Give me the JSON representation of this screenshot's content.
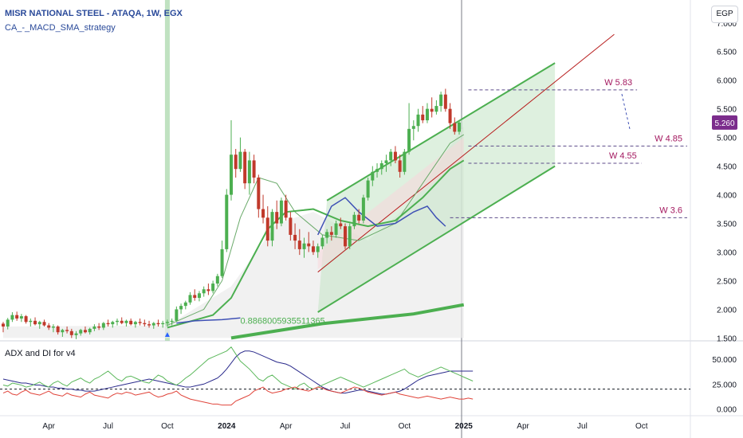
{
  "header": {
    "symbol_line": "MISR NATIONAL STEEL - ATAQA, 1W, EGX",
    "strategy_line": "CA_-_MACD_SMA_strategy",
    "indicator_line": "ADX and DI for v4",
    "currency_button": "EGP"
  },
  "chart_data": [
    {
      "type": "candlestick",
      "title": "MISR NATIONAL STEEL - ATAQA, 1W, EGX",
      "y_ticks": [
        "7.000",
        "6.500",
        "6.000",
        "5.500",
        "5.000",
        "4.500",
        "4.000",
        "3.500",
        "3.000",
        "2.500",
        "2.000",
        "1.500"
      ],
      "y_tick_values": [
        7.0,
        6.5,
        6.0,
        5.5,
        5.0,
        4.5,
        4.0,
        3.5,
        3.0,
        2.5,
        2.0,
        1.5
      ],
      "ylim": [
        1.45,
        7.4
      ],
      "current_price": "5.260",
      "current_price_value": 5.26,
      "x_ticks": [
        "Apr",
        "Jul",
        "Oct",
        "2024",
        "Apr",
        "Jul",
        "Oct",
        "2025",
        "Apr",
        "Jul",
        "Oct"
      ],
      "x_tick_bars": [
        10,
        23,
        36,
        49,
        62,
        75,
        88,
        101,
        114,
        127,
        140
      ],
      "candles": [
        [
          1.75,
          1.78,
          1.6,
          1.7
        ],
        [
          1.7,
          1.85,
          1.65,
          1.82
        ],
        [
          1.82,
          1.95,
          1.78,
          1.9
        ],
        [
          1.9,
          1.96,
          1.8,
          1.84
        ],
        [
          1.84,
          1.92,
          1.78,
          1.88
        ],
        [
          1.88,
          1.9,
          1.75,
          1.78
        ],
        [
          1.78,
          1.84,
          1.7,
          1.8
        ],
        [
          1.8,
          1.86,
          1.72,
          1.74
        ],
        [
          1.74,
          1.8,
          1.66,
          1.78
        ],
        [
          1.78,
          1.82,
          1.7,
          1.72
        ],
        [
          1.72,
          1.76,
          1.64,
          1.68
        ],
        [
          1.68,
          1.74,
          1.6,
          1.7
        ],
        [
          1.7,
          1.72,
          1.56,
          1.6
        ],
        [
          1.6,
          1.66,
          1.52,
          1.64
        ],
        [
          1.64,
          1.7,
          1.58,
          1.62
        ],
        [
          1.62,
          1.66,
          1.5,
          1.55
        ],
        [
          1.55,
          1.62,
          1.48,
          1.58
        ],
        [
          1.58,
          1.66,
          1.54,
          1.64
        ],
        [
          1.64,
          1.7,
          1.58,
          1.6
        ],
        [
          1.6,
          1.68,
          1.56,
          1.66
        ],
        [
          1.66,
          1.74,
          1.62,
          1.7
        ],
        [
          1.7,
          1.76,
          1.64,
          1.68
        ],
        [
          1.68,
          1.78,
          1.64,
          1.76
        ],
        [
          1.76,
          1.82,
          1.7,
          1.74
        ],
        [
          1.74,
          1.8,
          1.68,
          1.78
        ],
        [
          1.78,
          1.84,
          1.72,
          1.8
        ],
        [
          1.8,
          1.86,
          1.74,
          1.76
        ],
        [
          1.76,
          1.82,
          1.7,
          1.8
        ],
        [
          1.8,
          1.84,
          1.72,
          1.74
        ],
        [
          1.74,
          1.8,
          1.68,
          1.78
        ],
        [
          1.78,
          1.84,
          1.72,
          1.76
        ],
        [
          1.76,
          1.82,
          1.7,
          1.74
        ],
        [
          1.74,
          1.8,
          1.68,
          1.72
        ],
        [
          1.72,
          1.78,
          1.66,
          1.76
        ],
        [
          1.76,
          1.82,
          1.7,
          1.74
        ],
        [
          1.74,
          1.8,
          1.68,
          1.76
        ],
        [
          1.76,
          1.82,
          1.7,
          1.78
        ],
        [
          1.78,
          1.84,
          1.72,
          1.8
        ],
        [
          1.8,
          2.05,
          1.78,
          2.0
        ],
        [
          2.0,
          2.1,
          1.92,
          2.06
        ],
        [
          2.06,
          2.15,
          2.0,
          2.12
        ],
        [
          2.12,
          2.3,
          2.08,
          2.25
        ],
        [
          2.25,
          2.35,
          2.15,
          2.2
        ],
        [
          2.2,
          2.32,
          2.14,
          2.28
        ],
        [
          2.28,
          2.4,
          2.22,
          2.35
        ],
        [
          2.35,
          2.45,
          2.25,
          2.32
        ],
        [
          2.32,
          2.5,
          2.28,
          2.45
        ],
        [
          2.45,
          2.62,
          2.4,
          2.58
        ],
        [
          2.58,
          3.2,
          2.55,
          3.05
        ],
        [
          3.05,
          4.1,
          3.0,
          4.0
        ],
        [
          4.0,
          5.3,
          3.9,
          4.7
        ],
        [
          4.7,
          4.8,
          4.3,
          4.45
        ],
        [
          4.45,
          5.0,
          4.4,
          4.75
        ],
        [
          4.75,
          4.8,
          4.1,
          4.2
        ],
        [
          4.2,
          4.75,
          4.0,
          4.6
        ],
        [
          4.6,
          4.7,
          4.2,
          4.3
        ],
        [
          4.3,
          4.35,
          3.6,
          3.75
        ],
        [
          3.75,
          4.0,
          3.5,
          3.6
        ],
        [
          3.6,
          3.8,
          3.1,
          3.2
        ],
        [
          3.2,
          3.75,
          3.1,
          3.7
        ],
        [
          3.7,
          3.9,
          3.4,
          3.5
        ],
        [
          3.5,
          3.95,
          3.45,
          3.9
        ],
        [
          3.9,
          4.0,
          3.55,
          3.6
        ],
        [
          3.6,
          3.7,
          3.2,
          3.3
        ],
        [
          3.3,
          3.5,
          3.05,
          3.2
        ],
        [
          3.2,
          3.4,
          2.95,
          3.05
        ],
        [
          3.05,
          3.25,
          2.9,
          3.15
        ],
        [
          3.15,
          3.35,
          3.0,
          3.1
        ],
        [
          3.1,
          3.2,
          2.95,
          3.0
        ],
        [
          3.0,
          3.15,
          2.9,
          3.1
        ],
        [
          3.1,
          3.3,
          3.05,
          3.25
        ],
        [
          3.25,
          3.4,
          3.15,
          3.35
        ],
        [
          3.35,
          3.45,
          3.2,
          3.3
        ],
        [
          3.3,
          3.55,
          3.25,
          3.5
        ],
        [
          3.5,
          3.6,
          3.4,
          3.45
        ],
        [
          3.45,
          3.5,
          3.05,
          3.1
        ],
        [
          3.1,
          3.5,
          3.05,
          3.45
        ],
        [
          3.45,
          3.7,
          3.4,
          3.65
        ],
        [
          3.65,
          3.75,
          3.5,
          3.55
        ],
        [
          3.55,
          4.0,
          3.5,
          3.95
        ],
        [
          3.95,
          4.3,
          3.9,
          4.25
        ],
        [
          4.25,
          4.5,
          4.15,
          4.4
        ],
        [
          4.4,
          4.55,
          4.3,
          4.45
        ],
        [
          4.45,
          4.6,
          4.35,
          4.55
        ],
        [
          4.55,
          4.7,
          4.4,
          4.6
        ],
        [
          4.6,
          4.8,
          4.5,
          4.75
        ],
        [
          4.75,
          4.85,
          4.55,
          4.6
        ],
        [
          4.6,
          4.7,
          4.3,
          4.4
        ],
        [
          4.4,
          4.8,
          4.35,
          4.75
        ],
        [
          4.75,
          5.6,
          4.7,
          5.15
        ],
        [
          5.15,
          5.3,
          4.95,
          5.2
        ],
        [
          5.2,
          5.5,
          5.1,
          5.4
        ],
        [
          5.4,
          5.55,
          5.25,
          5.3
        ],
        [
          5.3,
          5.6,
          5.25,
          5.5
        ],
        [
          5.5,
          5.7,
          5.35,
          5.45
        ],
        [
          5.45,
          5.65,
          5.4,
          5.55
        ],
        [
          5.55,
          5.8,
          5.45,
          5.75
        ],
        [
          5.75,
          5.85,
          5.45,
          5.5
        ],
        [
          5.5,
          5.6,
          5.15,
          5.25
        ],
        [
          5.25,
          5.35,
          5.05,
          5.1
        ],
        [
          5.1,
          5.3,
          5.05,
          5.26
        ]
      ],
      "blue_line": [
        [
          38,
          1.76
        ],
        [
          42,
          1.8
        ],
        [
          48,
          1.82
        ],
        [
          52,
          1.85
        ]
      ],
      "blue_line_2": [
        [
          69,
          3.3
        ],
        [
          72,
          3.8
        ],
        [
          75,
          3.95
        ],
        [
          78,
          3.7
        ],
        [
          82,
          3.45
        ],
        [
          86,
          3.5
        ],
        [
          90,
          3.7
        ],
        [
          93,
          3.8
        ],
        [
          95,
          3.6
        ],
        [
          97,
          3.45
        ]
      ],
      "green_fill_upper": [
        [
          71,
          3.9
        ],
        [
          121,
          6.3
        ]
      ],
      "green_fill_lower": [
        [
          69,
          1.95
        ],
        [
          121,
          4.5
        ]
      ],
      "red_trendline": [
        [
          69,
          2.65
        ],
        [
          134,
          6.8
        ]
      ],
      "annotations": [
        {
          "text": "W  5.83",
          "value": 5.83,
          "line_from": 102,
          "line_to": 139
        },
        {
          "text": "W 4.85",
          "value": 4.85,
          "line_from": 102,
          "line_to": 150
        },
        {
          "text": "W 4.55",
          "value": 4.55,
          "line_from": 102,
          "line_to": 140
        },
        {
          "text": "W 3.6",
          "value": 3.6,
          "line_from": 98,
          "line_to": 150
        }
      ],
      "fib_label": "0.8868005935511365"
    },
    {
      "type": "line",
      "title": "ADX and DI for v4",
      "y_ticks": [
        "50.000",
        "25.000",
        "0.000"
      ],
      "y_tick_values": [
        50,
        25,
        0
      ],
      "ylim": [
        -5,
        65
      ],
      "threshold": 20,
      "series": [
        {
          "color": "#2b2b8c",
          "values": [
            30,
            29,
            28,
            27,
            26,
            26,
            25,
            24,
            24,
            23,
            22,
            22,
            21,
            21,
            20,
            20,
            19,
            19,
            18,
            18,
            18,
            19,
            20,
            21,
            22,
            23,
            24,
            25,
            26,
            27,
            28,
            29,
            30,
            29,
            28,
            27,
            26,
            25,
            24,
            23,
            22,
            22,
            23,
            24,
            25,
            27,
            29,
            31,
            35,
            40,
            46,
            52,
            56,
            58,
            58,
            57,
            55,
            53,
            51,
            49,
            47,
            46,
            45,
            43,
            40,
            37,
            34,
            31,
            28,
            25,
            22,
            20,
            18,
            17,
            16,
            16,
            17,
            18,
            19,
            19,
            18,
            17,
            16,
            15,
            15,
            16,
            17,
            18,
            20,
            23,
            26,
            29,
            31,
            33,
            34,
            35,
            36,
            37,
            38,
            38,
            38,
            38,
            38,
            38
          ]
        },
        {
          "color": "#5cb85c",
          "values": [
            24,
            23,
            26,
            25,
            24,
            22,
            23,
            25,
            27,
            24,
            22,
            26,
            28,
            25,
            23,
            27,
            29,
            31,
            28,
            26,
            30,
            32,
            35,
            38,
            34,
            30,
            28,
            32,
            33,
            31,
            29,
            27,
            26,
            30,
            34,
            32,
            28,
            26,
            24,
            27,
            31,
            34,
            38,
            42,
            46,
            50,
            52,
            54,
            56,
            58,
            62,
            55,
            48,
            44,
            40,
            35,
            30,
            28,
            32,
            34,
            30,
            26,
            24,
            22,
            20,
            24,
            26,
            22,
            20,
            22,
            24,
            26,
            28,
            30,
            32,
            30,
            28,
            26,
            24,
            22,
            24,
            26,
            28,
            30,
            32,
            34,
            36,
            38,
            40,
            36,
            34,
            32,
            34,
            36,
            38,
            40,
            42,
            40,
            38,
            36,
            34,
            32,
            30,
            28
          ]
        },
        {
          "color": "#e0443a",
          "values": [
            16,
            18,
            15,
            14,
            17,
            19,
            16,
            15,
            14,
            16,
            18,
            15,
            14,
            13,
            16,
            14,
            13,
            12,
            15,
            17,
            14,
            13,
            12,
            11,
            14,
            16,
            15,
            17,
            16,
            14,
            15,
            16,
            17,
            14,
            12,
            13,
            15,
            16,
            18,
            14,
            12,
            10,
            9,
            8,
            7,
            6,
            5,
            5,
            4,
            4,
            4,
            8,
            10,
            12,
            14,
            18,
            20,
            22,
            18,
            16,
            17,
            18,
            20,
            21,
            22,
            20,
            19,
            18,
            20,
            22,
            21,
            19,
            18,
            17,
            16,
            18,
            20,
            22,
            21,
            19,
            17,
            16,
            15,
            14,
            15,
            16,
            17,
            15,
            14,
            13,
            12,
            11,
            12,
            13,
            12,
            11,
            10,
            11,
            12,
            11,
            10,
            10,
            11,
            10
          ]
        }
      ]
    }
  ],
  "colors": {
    "up": "#4caf50",
    "down": "#c0392b",
    "channel_fill": "#c8e6c9",
    "annotation": "#a3185f",
    "price_tag": "#7b2c8c"
  }
}
